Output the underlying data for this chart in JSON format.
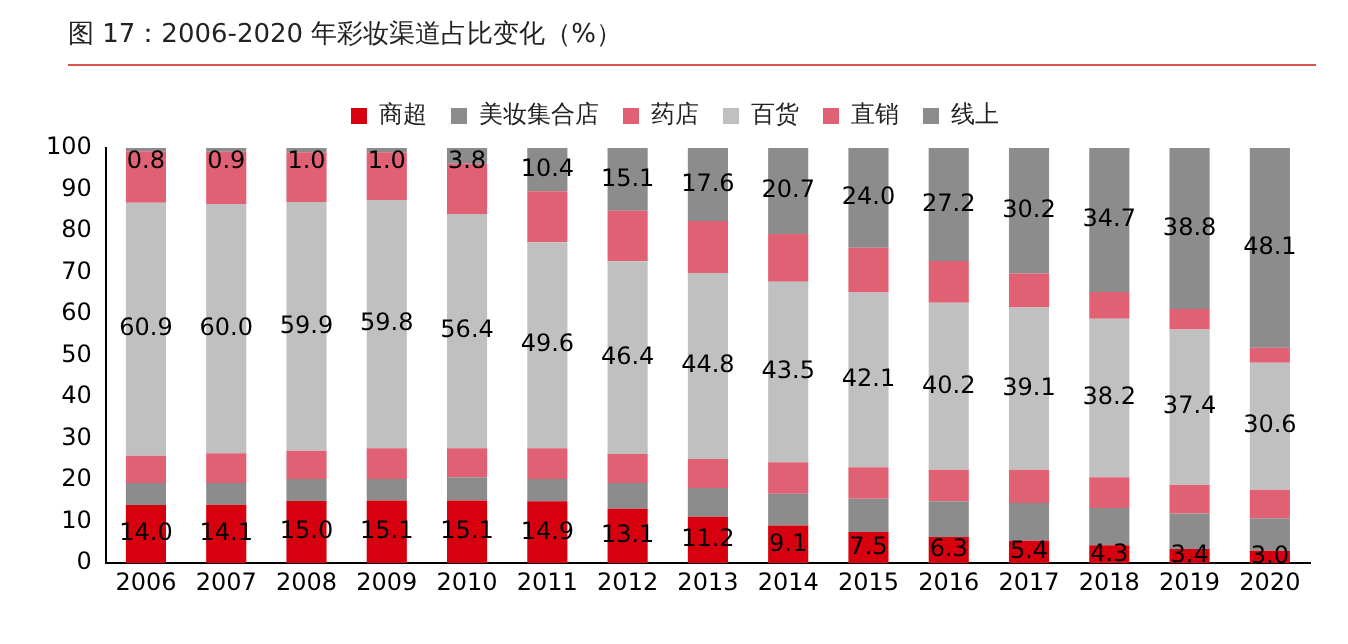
{
  "chart_data": {
    "type": "bar",
    "title": "图 17：2006-2020 年彩妆渠道占比变化（%）",
    "stacked": true,
    "legend": "top",
    "grid": false,
    "categories": [
      "2006",
      "2007",
      "2008",
      "2009",
      "2010",
      "2011",
      "2012",
      "2013",
      "2014",
      "2015",
      "2016",
      "2017",
      "2018",
      "2019",
      "2020"
    ],
    "ylim": [
      0,
      100
    ],
    "yticks": [
      0,
      10,
      20,
      30,
      40,
      50,
      60,
      70,
      80,
      90,
      100
    ],
    "series": [
      {
        "name": "商超",
        "color": "#d7000f",
        "values": [
          14.0,
          14.1,
          15.0,
          15.1,
          15.1,
          14.9,
          13.1,
          11.2,
          9.1,
          7.5,
          6.3,
          5.4,
          4.3,
          3.4,
          3.0
        ],
        "value_labels": [
          "14.0",
          "14.1",
          "15.0",
          "15.1",
          "15.1",
          "14.9",
          "13.1",
          "11.2",
          "9.1",
          "7.5",
          "6.3",
          "5.4",
          "4.3",
          "3.4",
          "3.0"
        ]
      },
      {
        "name": "美妆集合店",
        "color": "#8c8c8c",
        "values": [
          5.3,
          5.2,
          5.3,
          5.2,
          5.6,
          5.4,
          6.2,
          6.9,
          7.6,
          8.0,
          8.6,
          9.1,
          9.0,
          8.6,
          7.8
        ]
      },
      {
        "name": "药店",
        "color": "#e06173",
        "values": [
          6.6,
          7.2,
          6.8,
          7.4,
          7.0,
          7.4,
          7.0,
          7.0,
          7.6,
          7.6,
          7.6,
          8.0,
          7.4,
          6.9,
          6.9
        ]
      },
      {
        "name": "百货",
        "color": "#c0c0c0",
        "values": [
          60.9,
          60.0,
          59.9,
          59.8,
          56.4,
          49.6,
          46.4,
          44.8,
          43.5,
          42.1,
          40.2,
          39.1,
          38.2,
          37.4,
          30.6
        ],
        "value_labels": [
          "60.9",
          "60.0",
          "59.9",
          "59.8",
          "56.4",
          "49.6",
          "46.4",
          "44.8",
          "43.5",
          "42.1",
          "40.2",
          "39.1",
          "38.2",
          "37.4",
          "30.6"
        ]
      },
      {
        "name": "直销",
        "color": "#e06173",
        "values": [
          12.4,
          12.6,
          12.0,
          11.5,
          12.1,
          12.3,
          12.2,
          12.5,
          11.5,
          10.8,
          10.1,
          8.2,
          6.4,
          4.9,
          3.6
        ]
      },
      {
        "name": "线上",
        "color": "#8c8c8c",
        "values": [
          0.8,
          0.9,
          1.0,
          1.0,
          3.8,
          10.4,
          15.1,
          17.6,
          20.7,
          24.0,
          27.2,
          30.2,
          34.7,
          38.8,
          48.1
        ],
        "value_labels": [
          "0.8",
          "0.9",
          "1.0",
          "1.0",
          "3.8",
          "10.4",
          "15.1",
          "17.6",
          "20.7",
          "24.0",
          "27.2",
          "30.2",
          "34.7",
          "38.8",
          "48.1"
        ]
      }
    ]
  }
}
